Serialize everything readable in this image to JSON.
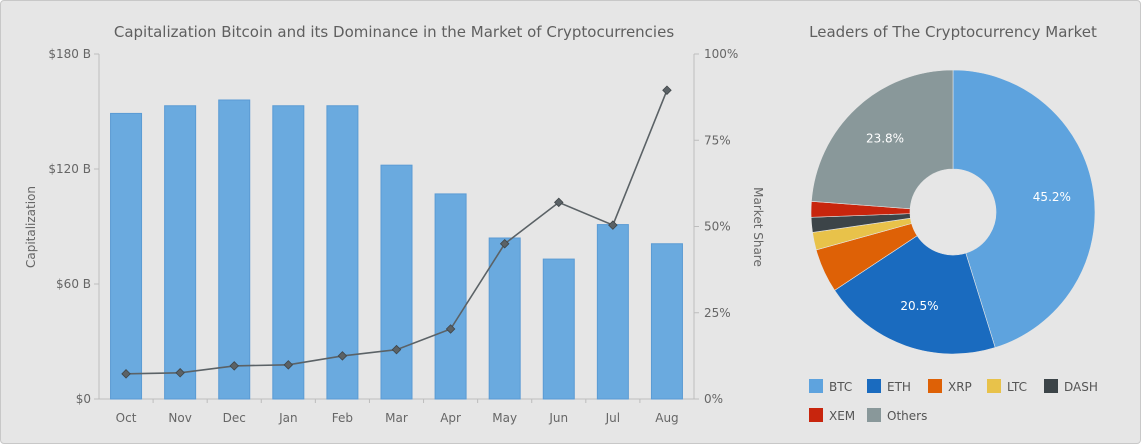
{
  "chart_data": [
    {
      "type": "bar",
      "title": "Capitalization Bitcoin and its Dominance in the Market of Cryptocurrencies",
      "categories": [
        "Oct",
        "Nov",
        "Dec",
        "Jan",
        "Feb",
        "Mar",
        "Apr",
        "May",
        "Jun",
        "Jul",
        "Aug"
      ],
      "series": [
        {
          "name": "Capitalization",
          "type": "bar",
          "axis": "left",
          "color": "#6aaadf",
          "values": [
            149,
            153,
            156,
            153,
            153,
            122,
            107,
            84,
            73,
            91,
            81
          ]
        },
        {
          "name": "Market Share",
          "type": "line",
          "axis": "right",
          "color": "#5b6266",
          "values": [
            7.3,
            7.6,
            9.6,
            9.9,
            12.5,
            14.3,
            20.3,
            45,
            57,
            50.4,
            89.5
          ]
        }
      ],
      "ylabel": "Capitalization",
      "y2label": "Market Share",
      "ylim": [
        0,
        180
      ],
      "y2lim": [
        0,
        100
      ],
      "yticks": [
        {
          "value": 0,
          "label": "$0"
        },
        {
          "value": 60,
          "label": "$60 B"
        },
        {
          "value": 120,
          "label": "$120 B"
        },
        {
          "value": 180,
          "label": "$180 B"
        }
      ],
      "y2ticks": [
        {
          "value": 0,
          "label": "0%"
        },
        {
          "value": 25,
          "label": "25%"
        },
        {
          "value": 50,
          "label": "50%"
        },
        {
          "value": 75,
          "label": "75%"
        },
        {
          "value": 100,
          "label": "100%"
        }
      ],
      "grid": false
    },
    {
      "type": "pie",
      "title": "Leaders of The Cryptocurrency Market",
      "slices": [
        {
          "name": "BTC",
          "value": 45.2,
          "label": "45.2%",
          "color": "#5ea3de"
        },
        {
          "name": "ETH",
          "value": 20.5,
          "label": "20.5%",
          "color": "#1a6bbf"
        },
        {
          "name": "XRP",
          "value": 5.0,
          "label": "",
          "color": "#de6106"
        },
        {
          "name": "LTC",
          "value": 2.0,
          "label": "",
          "color": "#e8c24a"
        },
        {
          "name": "DASH",
          "value": 1.7,
          "label": "",
          "color": "#3c4448"
        },
        {
          "name": "XEM",
          "value": 1.8,
          "label": "",
          "color": "#c8250d"
        },
        {
          "name": "Others",
          "value": 23.8,
          "label": "23.8%",
          "color": "#89989a"
        }
      ],
      "legend_position": "bottom",
      "donut": true
    }
  ]
}
